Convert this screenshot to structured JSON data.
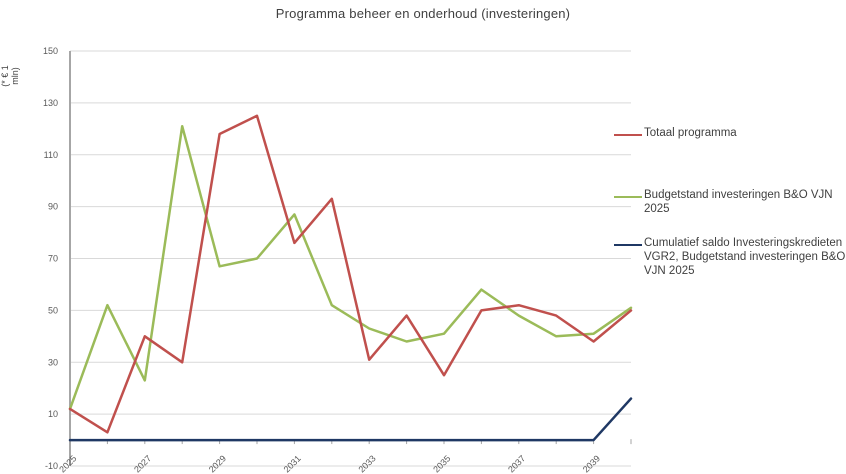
{
  "chart_data": {
    "type": "line",
    "title": "Programma beheer en onderhoud (investeringen)",
    "ylabel": "(* € 1 mln)",
    "xlabel": "",
    "ylim": [
      -10,
      150
    ],
    "xlim": [
      2025,
      2040
    ],
    "y_ticks": [
      -10,
      10,
      30,
      50,
      70,
      90,
      110,
      130,
      150
    ],
    "x_ticks": [
      "2025",
      "2027",
      "2029",
      "2031",
      "2033",
      "2035",
      "2037",
      "2039"
    ],
    "x": [
      2025,
      2026,
      2027,
      2028,
      2029,
      2030,
      2031,
      2032,
      2033,
      2034,
      2035,
      2036,
      2037,
      2038,
      2039,
      2040
    ],
    "grid": "horizontal",
    "legend_position": "right",
    "series": [
      {
        "name": "Totaal programma",
        "color": "#c0504d",
        "values": [
          12,
          3,
          40,
          30,
          118,
          125,
          76,
          93,
          31,
          48,
          25,
          50,
          52,
          48,
          38,
          50
        ]
      },
      {
        "name": "Budgetstand investeringen B&O VJN 2025",
        "color": "#9bbb59",
        "values": [
          12,
          52,
          23,
          121,
          67,
          70,
          87,
          52,
          43,
          38,
          41,
          58,
          48,
          40,
          41,
          51
        ]
      },
      {
        "name": "Cumulatief saldo Investeringskredieten VGR2, Budgetstand investeringen B&O VJN 2025",
        "color": "#1f3864",
        "values": [
          0,
          0,
          0,
          0,
          0,
          0,
          0,
          0,
          0,
          0,
          0,
          0,
          0,
          0,
          0,
          16
        ]
      }
    ]
  }
}
